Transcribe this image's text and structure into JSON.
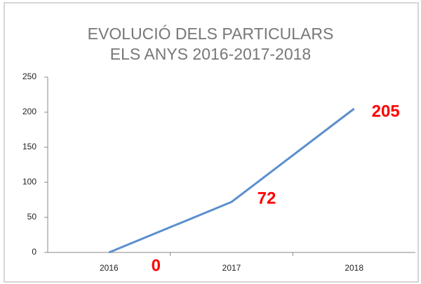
{
  "chart_data": {
    "type": "line",
    "title": "EVOLUCIÓ DELS PARTICULARS ELS ANYS 2016-2017-2018",
    "categories": [
      "2016",
      "2017",
      "2018"
    ],
    "values": [
      0,
      72,
      205
    ],
    "color": "#5b8fd0",
    "label_color": "#ff0000",
    "ylim": [
      0,
      250
    ],
    "yticks": [
      0,
      50,
      100,
      150,
      200,
      250
    ],
    "grid": false
  }
}
